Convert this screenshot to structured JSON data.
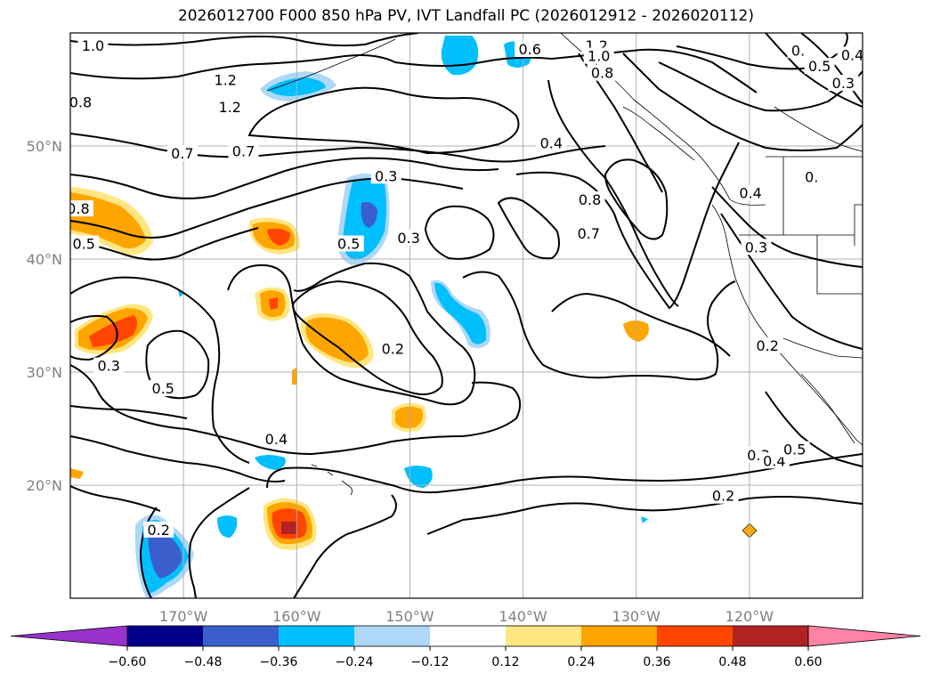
{
  "title": "2026012700 F000 850 hPa PV, IVT Landfall PC (2026012912 - 2026020112)",
  "colors": {
    "grid": "#b0b0b0",
    "contour": "#000000",
    "tick_label": "#808080"
  },
  "map": {
    "lon_range": [
      -180,
      -110
    ],
    "lat_range": [
      10,
      60
    ],
    "lon_ticks": [
      {
        "value": -170,
        "label": "170°W"
      },
      {
        "value": -160,
        "label": "160°W"
      },
      {
        "value": -150,
        "label": "150°W"
      },
      {
        "value": -140,
        "label": "140°W"
      },
      {
        "value": -130,
        "label": "130°W"
      },
      {
        "value": -120,
        "label": "120°W"
      }
    ],
    "lat_ticks": [
      {
        "value": 50,
        "label": "50°N"
      },
      {
        "value": 40,
        "label": "40°N"
      },
      {
        "value": 30,
        "label": "30°N"
      },
      {
        "value": 20,
        "label": "20°N"
      }
    ],
    "contour_labels": [
      {
        "text": "1.0",
        "lon": -178,
        "lat": 58.8
      },
      {
        "text": "1.2",
        "lon": -166.3,
        "lat": 55.8
      },
      {
        "text": "0.8",
        "lon": -179.1,
        "lat": 53.8
      },
      {
        "text": "1.2",
        "lon": -165.9,
        "lat": 53.4
      },
      {
        "text": "0.7",
        "lon": -170.1,
        "lat": 49.3
      },
      {
        "text": "0.7",
        "lon": -164.7,
        "lat": 49.5
      },
      {
        "text": "0.3",
        "lon": -152.1,
        "lat": 47.3
      },
      {
        "text": "0.8",
        "lon": -179.3,
        "lat": 44.4
      },
      {
        "text": "0.5",
        "lon": -178.8,
        "lat": 41.3
      },
      {
        "text": "0.5",
        "lon": -155.4,
        "lat": 41.3
      },
      {
        "text": "0.3",
        "lon": -150.1,
        "lat": 41.8
      },
      {
        "text": "0.8",
        "lon": -134.1,
        "lat": 45.2
      },
      {
        "text": "0.7",
        "lon": -134.2,
        "lat": 42.2
      },
      {
        "text": "0.6",
        "lon": -139.4,
        "lat": 58.5
      },
      {
        "text": "1.2",
        "lon": -133.5,
        "lat": 58.8
      },
      {
        "text": "1.0",
        "lon": -133.3,
        "lat": 57.9
      },
      {
        "text": "0.8",
        "lon": -133.0,
        "lat": 56.4
      },
      {
        "text": "0.4",
        "lon": -137.5,
        "lat": 50.2
      },
      {
        "text": "0.4",
        "lon": -119.9,
        "lat": 45.8
      },
      {
        "text": "0.3",
        "lon": -119.4,
        "lat": 41.0
      },
      {
        "text": "0.2",
        "lon": -151.5,
        "lat": 32.0
      },
      {
        "text": "0.3",
        "lon": -176.6,
        "lat": 30.5
      },
      {
        "text": "0.5",
        "lon": -171.8,
        "lat": 28.5
      },
      {
        "text": "0.4",
        "lon": -161.8,
        "lat": 24.0
      },
      {
        "text": "0.2",
        "lon": -118.4,
        "lat": 32.3
      },
      {
        "text": "0.3",
        "lon": -119.2,
        "lat": 22.6
      },
      {
        "text": "0.4",
        "lon": -117.8,
        "lat": 22.1
      },
      {
        "text": "0.5",
        "lon": -116.0,
        "lat": 23.1
      },
      {
        "text": "0.2",
        "lon": -122.3,
        "lat": 19.0
      },
      {
        "text": "0.2",
        "lon": -172.2,
        "lat": 16.0
      },
      {
        "text": "0.5",
        "lon": -113.8,
        "lat": 57.0
      },
      {
        "text": "0.3",
        "lon": -111.7,
        "lat": 55.5
      },
      {
        "text": "0.",
        "lon": -114.5,
        "lat": 47.2
      },
      {
        "text": "0.",
        "lon": -115.7,
        "lat": 58.4
      },
      {
        "text": "0.4",
        "lon": -110.9,
        "lat": 58.0
      }
    ]
  },
  "colorbar": {
    "ticks": [
      "−0.60",
      "−0.48",
      "−0.36",
      "−0.24",
      "−0.12",
      "0.12",
      "0.24",
      "0.36",
      "0.48",
      "0.60"
    ],
    "colors": [
      "#9932cc",
      "#00008b",
      "#3a5fcd",
      "#00bfff",
      "#add8f7",
      "#ffffff",
      "#ffe680",
      "#ffa500",
      "#ff4500",
      "#b22222",
      "#ff83a6"
    ]
  }
}
